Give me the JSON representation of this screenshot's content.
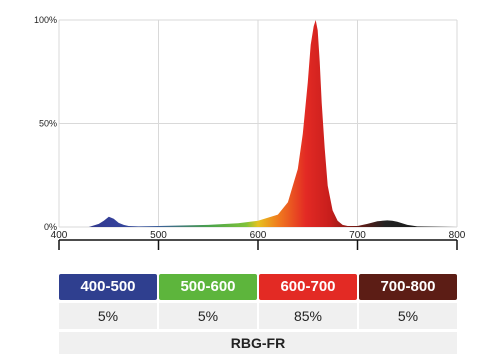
{
  "chart_data": {
    "type": "area",
    "xlim": [
      400,
      800
    ],
    "ylim": [
      0,
      100
    ],
    "x_ticks": [
      400,
      500,
      600,
      700,
      800
    ],
    "y_ticks": [
      "0%",
      "50%",
      "100%"
    ],
    "grid": true,
    "series": [
      {
        "x": [
          400,
          430,
          440,
          445,
          450,
          455,
          460,
          465,
          470,
          480,
          500,
          550,
          580,
          600,
          620,
          630,
          640,
          645,
          650,
          653,
          656,
          658,
          660,
          662,
          664,
          667,
          670,
          675,
          680,
          685,
          690,
          700,
          710,
          720,
          725,
          730,
          735,
          740,
          750,
          760,
          800
        ],
        "y": [
          0,
          0,
          1.5,
          3,
          5,
          4,
          2,
          1,
          0.5,
          0.3,
          0.5,
          1,
          1.8,
          3,
          6,
          12,
          28,
          45,
          70,
          88,
          97,
          100,
          95,
          80,
          60,
          38,
          20,
          8,
          3,
          1,
          0.5,
          0.5,
          1.5,
          2.8,
          3,
          3.2,
          3,
          2.5,
          1,
          0.3,
          0
        ]
      }
    ]
  },
  "bands": [
    {
      "label": "400-500",
      "value": "5%",
      "color": "#2f3f8f"
    },
    {
      "label": "500-600",
      "value": "5%",
      "color": "#5db53c"
    },
    {
      "label": "600-700",
      "value": "85%",
      "color": "#e32a24"
    },
    {
      "label": "700-800",
      "value": "5%",
      "color": "#5c1d15"
    }
  ],
  "footer": "RBG-FR",
  "colors": {
    "blue": "#2f3f8f",
    "green": "#5db53c",
    "red": "#e32a24",
    "darkred": "#5c1d15",
    "grid": "#d9d9d9"
  }
}
